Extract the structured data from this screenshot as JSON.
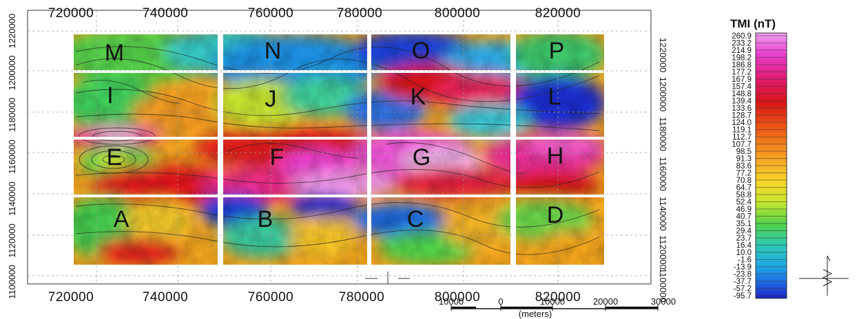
{
  "map": {
    "x_ticks": [
      "720000",
      "740000",
      "760000",
      "780000",
      "800000",
      "820000"
    ],
    "y_ticks_left": [
      "1220000",
      "1200000",
      "1180000",
      "1160000",
      "1140000",
      "1120000",
      "1100000"
    ],
    "y_ticks_right": [
      "1220000",
      "1200000",
      "1180000",
      "1160000",
      "1140000",
      "1120000",
      "1100000"
    ],
    "sheets": [
      "M",
      "N",
      "O",
      "P",
      "I",
      "J",
      "K",
      "L",
      "E",
      "F",
      "G",
      "H",
      "A",
      "B",
      "C",
      "D"
    ]
  },
  "colorbar": {
    "title": "TMI (nT)",
    "labels": [
      "260.9",
      "233.2",
      "214.9",
      "198.2",
      "186.8",
      "177.2",
      "167.9",
      "157.4",
      "148.8",
      "139.4",
      "133.6",
      "128.7",
      "124.0",
      "119.1",
      "112.7",
      "107.7",
      "98.5",
      "91.3",
      "83.6",
      "77.2",
      "70.8",
      "64.7",
      "58.8",
      "52.4",
      "46.9",
      "40.7",
      "35.1",
      "29.4",
      "23.7",
      "16.4",
      "10.0",
      "-1.6",
      "-13.9",
      "-23.8",
      "-37.7",
      "-57.2",
      "-95.7"
    ]
  },
  "scale_bar": {
    "labels": [
      "10000",
      "0",
      "10000",
      "20000",
      "30000"
    ],
    "units": "(meters)"
  }
}
